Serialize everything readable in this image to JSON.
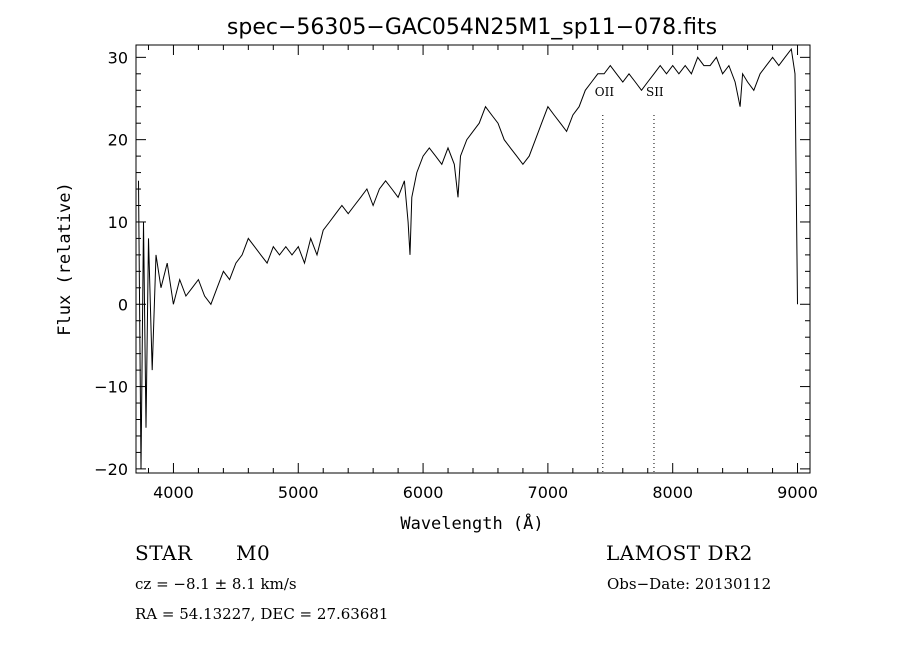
{
  "chart_data": {
    "type": "line",
    "title": "spec−56305−GAC054N25M1_sp11−078.fits",
    "xlabel": "Wavelength (Å)",
    "ylabel": "Flux (relative)",
    "xlim": [
      3700,
      9100
    ],
    "ylim": [
      -20.5,
      31.5
    ],
    "x_ticks": [
      4000,
      5000,
      6000,
      7000,
      8000,
      9000
    ],
    "y_ticks": [
      -20,
      -10,
      0,
      10,
      20,
      30
    ],
    "x_tick_labels": [
      "4000",
      "5000",
      "6000",
      "7000",
      "8000",
      "9000"
    ],
    "y_tick_labels": [
      "−20",
      "−10",
      "0",
      "10",
      "20",
      "30"
    ],
    "grid": false,
    "series": [
      {
        "x": [
          3720,
          3740,
          3760,
          3780,
          3800,
          3830,
          3860,
          3900,
          3950,
          4000,
          4050,
          4100,
          4150,
          4200,
          4250,
          4300,
          4350,
          4400,
          4450,
          4500,
          4550,
          4600,
          4650,
          4700,
          4750,
          4800,
          4850,
          4900,
          4950,
          5000,
          5050,
          5100,
          5150,
          5200,
          5250,
          5300,
          5350,
          5400,
          5450,
          5500,
          5550,
          5600,
          5650,
          5700,
          5750,
          5800,
          5850,
          5880,
          5895,
          5910,
          5950,
          6000,
          6050,
          6100,
          6150,
          6200,
          6250,
          6280,
          6300,
          6350,
          6400,
          6450,
          6500,
          6550,
          6600,
          6650,
          6700,
          6750,
          6800,
          6850,
          6900,
          6950,
          7000,
          7050,
          7100,
          7150,
          7200,
          7250,
          7300,
          7350,
          7400,
          7450,
          7500,
          7550,
          7600,
          7650,
          7700,
          7750,
          7800,
          7850,
          7900,
          7950,
          8000,
          8050,
          8100,
          8150,
          8200,
          8250,
          8300,
          8350,
          8400,
          8450,
          8500,
          8540,
          8560,
          8600,
          8650,
          8700,
          8750,
          8800,
          8850,
          8900,
          8950,
          8980,
          9000
        ],
        "y": [
          15,
          -20,
          10,
          -15,
          8,
          -8,
          6,
          2,
          5,
          0,
          3,
          1,
          2,
          3,
          1,
          0,
          2,
          4,
          3,
          5,
          6,
          8,
          7,
          6,
          5,
          7,
          6,
          7,
          6,
          7,
          5,
          8,
          6,
          9,
          10,
          11,
          12,
          11,
          12,
          13,
          14,
          12,
          14,
          15,
          14,
          13,
          15,
          10,
          6,
          13,
          16,
          18,
          19,
          18,
          17,
          19,
          17,
          13,
          18,
          20,
          21,
          22,
          24,
          23,
          22,
          20,
          19,
          18,
          17,
          18,
          20,
          22,
          24,
          23,
          22,
          21,
          23,
          24,
          26,
          27,
          28,
          28,
          29,
          28,
          27,
          28,
          27,
          26,
          27,
          28,
          29,
          28,
          29,
          28,
          29,
          28,
          30,
          29,
          29,
          30,
          28,
          29,
          27,
          24,
          28,
          27,
          26,
          28,
          29,
          30,
          29,
          30,
          31,
          28,
          0
        ]
      }
    ],
    "annotations": [
      {
        "x": 7440,
        "label": "OII"
      },
      {
        "x": 7850,
        "label": "SII"
      }
    ]
  },
  "info": {
    "class_label": "STAR",
    "subclass_label": "M0",
    "cz_text": "cz = −8.1 ± 8.1 km/s",
    "coords_text": "RA =  54.13227, DEC =  27.63681",
    "survey_label": "LAMOST DR2",
    "obs_date_text": "Obs−Date: 20130112"
  }
}
